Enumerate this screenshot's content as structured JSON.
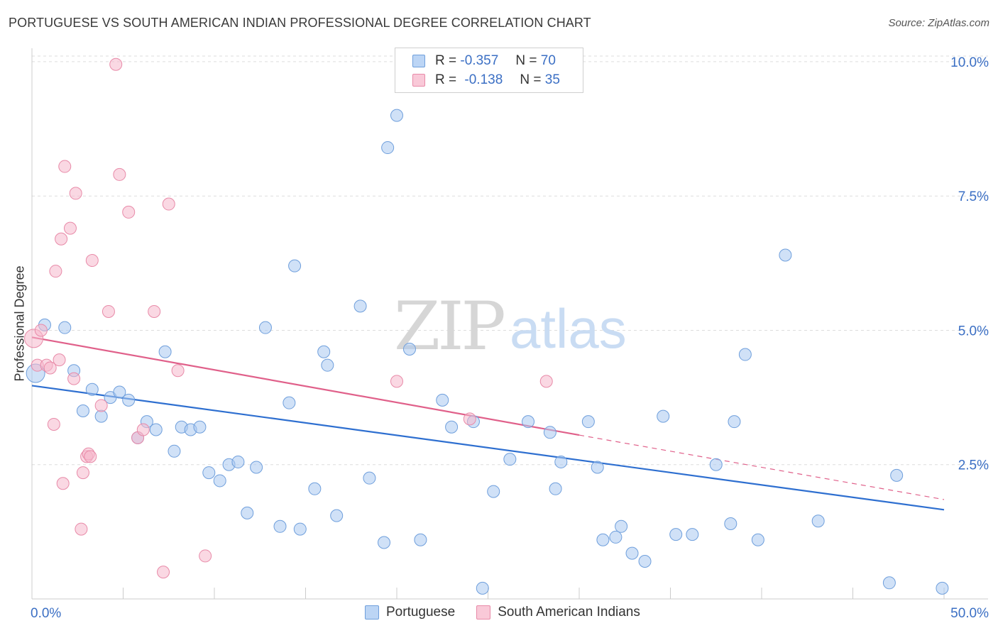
{
  "header": {
    "title": "PORTUGUESE VS SOUTH AMERICAN INDIAN PROFESSIONAL DEGREE CORRELATION CHART",
    "source": "Source: ZipAtlas.com"
  },
  "legend": {
    "rows": [
      {
        "r_label": "R =",
        "r_value": "-0.357",
        "n_label": "N =",
        "n_value": "70"
      },
      {
        "r_label": "R =",
        "r_value": "-0.138",
        "n_label": "N =",
        "n_value": "35"
      }
    ],
    "bottom": [
      "Portuguese",
      "South American Indians"
    ]
  },
  "watermark": {
    "zip": "ZIP",
    "atlas": "atlas"
  },
  "colors": {
    "blue_fill": "#a9c8f0",
    "blue_stroke": "#6f9fdc",
    "blue_line": "#2e6fd0",
    "pink_fill": "#f6b8cc",
    "pink_stroke": "#e88aa8",
    "pink_line": "#e0608a",
    "tick_label": "#3b6fc4",
    "grid": "#dddddd"
  },
  "chart_data": {
    "type": "scatter",
    "title": "PORTUGUESE VS SOUTH AMERICAN INDIAN PROFESSIONAL DEGREE CORRELATION CHART",
    "xlabel": "",
    "ylabel": "Professional Degree",
    "xlim": [
      0,
      50
    ],
    "ylim": [
      0,
      10.25
    ],
    "x_tick_labels": [
      {
        "value": 0,
        "label": "0.0%"
      },
      {
        "value": 50,
        "label": "50.0%"
      }
    ],
    "y_tick_labels": [
      {
        "value": 2.5,
        "label": "2.5%"
      },
      {
        "value": 5.0,
        "label": "5.0%"
      },
      {
        "value": 7.5,
        "label": "7.5%"
      },
      {
        "value": 10.0,
        "label": "10.0%"
      }
    ],
    "grid": true,
    "series": [
      {
        "name": "Portuguese",
        "color": "blue",
        "trend": {
          "x0": 0,
          "y0": 3.97,
          "x1": 50,
          "y1": 1.66
        },
        "points": [
          [
            0.2,
            4.2
          ],
          [
            0.7,
            5.1
          ],
          [
            1.8,
            5.05
          ],
          [
            2.3,
            4.25
          ],
          [
            2.8,
            3.5
          ],
          [
            3.3,
            3.9
          ],
          [
            3.8,
            3.4
          ],
          [
            4.3,
            3.75
          ],
          [
            4.8,
            3.85
          ],
          [
            5.3,
            3.7
          ],
          [
            5.8,
            3.0
          ],
          [
            6.3,
            3.3
          ],
          [
            6.8,
            3.15
          ],
          [
            7.3,
            4.6
          ],
          [
            7.8,
            2.75
          ],
          [
            8.2,
            3.2
          ],
          [
            8.7,
            3.15
          ],
          [
            9.2,
            3.2
          ],
          [
            9.7,
            2.35
          ],
          [
            10.3,
            2.2
          ],
          [
            10.8,
            2.5
          ],
          [
            11.3,
            2.55
          ],
          [
            11.8,
            1.6
          ],
          [
            12.3,
            2.45
          ],
          [
            12.8,
            5.05
          ],
          [
            13.6,
            1.35
          ],
          [
            14.1,
            3.65
          ],
          [
            14.4,
            6.2
          ],
          [
            14.7,
            1.3
          ],
          [
            15.5,
            2.05
          ],
          [
            16.0,
            4.6
          ],
          [
            16.2,
            4.35
          ],
          [
            16.7,
            1.55
          ],
          [
            18.0,
            5.45
          ],
          [
            18.5,
            2.25
          ],
          [
            19.3,
            1.05
          ],
          [
            19.5,
            8.4
          ],
          [
            20.0,
            9.0
          ],
          [
            20.7,
            4.65
          ],
          [
            21.3,
            1.1
          ],
          [
            22.5,
            3.7
          ],
          [
            23.0,
            3.2
          ],
          [
            24.2,
            3.3
          ],
          [
            24.7,
            0.2
          ],
          [
            25.3,
            2.0
          ],
          [
            26.2,
            2.6
          ],
          [
            27.2,
            3.3
          ],
          [
            28.4,
            3.1
          ],
          [
            28.7,
            2.05
          ],
          [
            29.0,
            2.55
          ],
          [
            30.5,
            3.3
          ],
          [
            31.0,
            2.45
          ],
          [
            31.3,
            1.1
          ],
          [
            32.0,
            1.15
          ],
          [
            32.3,
            1.35
          ],
          [
            32.9,
            0.85
          ],
          [
            33.6,
            0.7
          ],
          [
            34.6,
            3.4
          ],
          [
            35.3,
            1.2
          ],
          [
            36.2,
            1.2
          ],
          [
            37.5,
            2.5
          ],
          [
            38.3,
            1.4
          ],
          [
            38.5,
            3.3
          ],
          [
            39.1,
            4.55
          ],
          [
            39.8,
            1.1
          ],
          [
            41.3,
            6.4
          ],
          [
            43.1,
            1.45
          ],
          [
            47.0,
            0.3
          ],
          [
            47.4,
            2.3
          ],
          [
            49.9,
            0.2
          ]
        ]
      },
      {
        "name": "South American Indians",
        "color": "pink",
        "trend": {
          "x0": 0,
          "y0": 4.87,
          "x1": 30,
          "y1": 3.05
        },
        "trend_dashed": {
          "x0": 30,
          "y0": 3.05,
          "x1": 50,
          "y1": 1.85
        },
        "points": [
          [
            0.1,
            4.85
          ],
          [
            0.3,
            4.35
          ],
          [
            0.5,
            5.0
          ],
          [
            0.8,
            4.35
          ],
          [
            1.0,
            4.3
          ],
          [
            1.2,
            3.25
          ],
          [
            1.3,
            6.1
          ],
          [
            1.5,
            4.45
          ],
          [
            1.6,
            6.7
          ],
          [
            1.7,
            2.15
          ],
          [
            1.8,
            8.05
          ],
          [
            2.1,
            6.9
          ],
          [
            2.3,
            4.1
          ],
          [
            2.4,
            7.55
          ],
          [
            2.7,
            1.3
          ],
          [
            2.8,
            2.35
          ],
          [
            3.0,
            2.65
          ],
          [
            3.1,
            2.7
          ],
          [
            3.2,
            2.65
          ],
          [
            3.3,
            6.3
          ],
          [
            3.8,
            3.6
          ],
          [
            4.2,
            5.35
          ],
          [
            4.6,
            9.95
          ],
          [
            4.8,
            7.9
          ],
          [
            5.3,
            7.2
          ],
          [
            5.8,
            3.0
          ],
          [
            6.1,
            3.15
          ],
          [
            6.7,
            5.35
          ],
          [
            7.2,
            0.5
          ],
          [
            7.5,
            7.35
          ],
          [
            8.0,
            4.25
          ],
          [
            9.5,
            0.8
          ],
          [
            20.0,
            4.05
          ],
          [
            24.0,
            3.35
          ],
          [
            28.2,
            4.05
          ]
        ]
      }
    ]
  }
}
